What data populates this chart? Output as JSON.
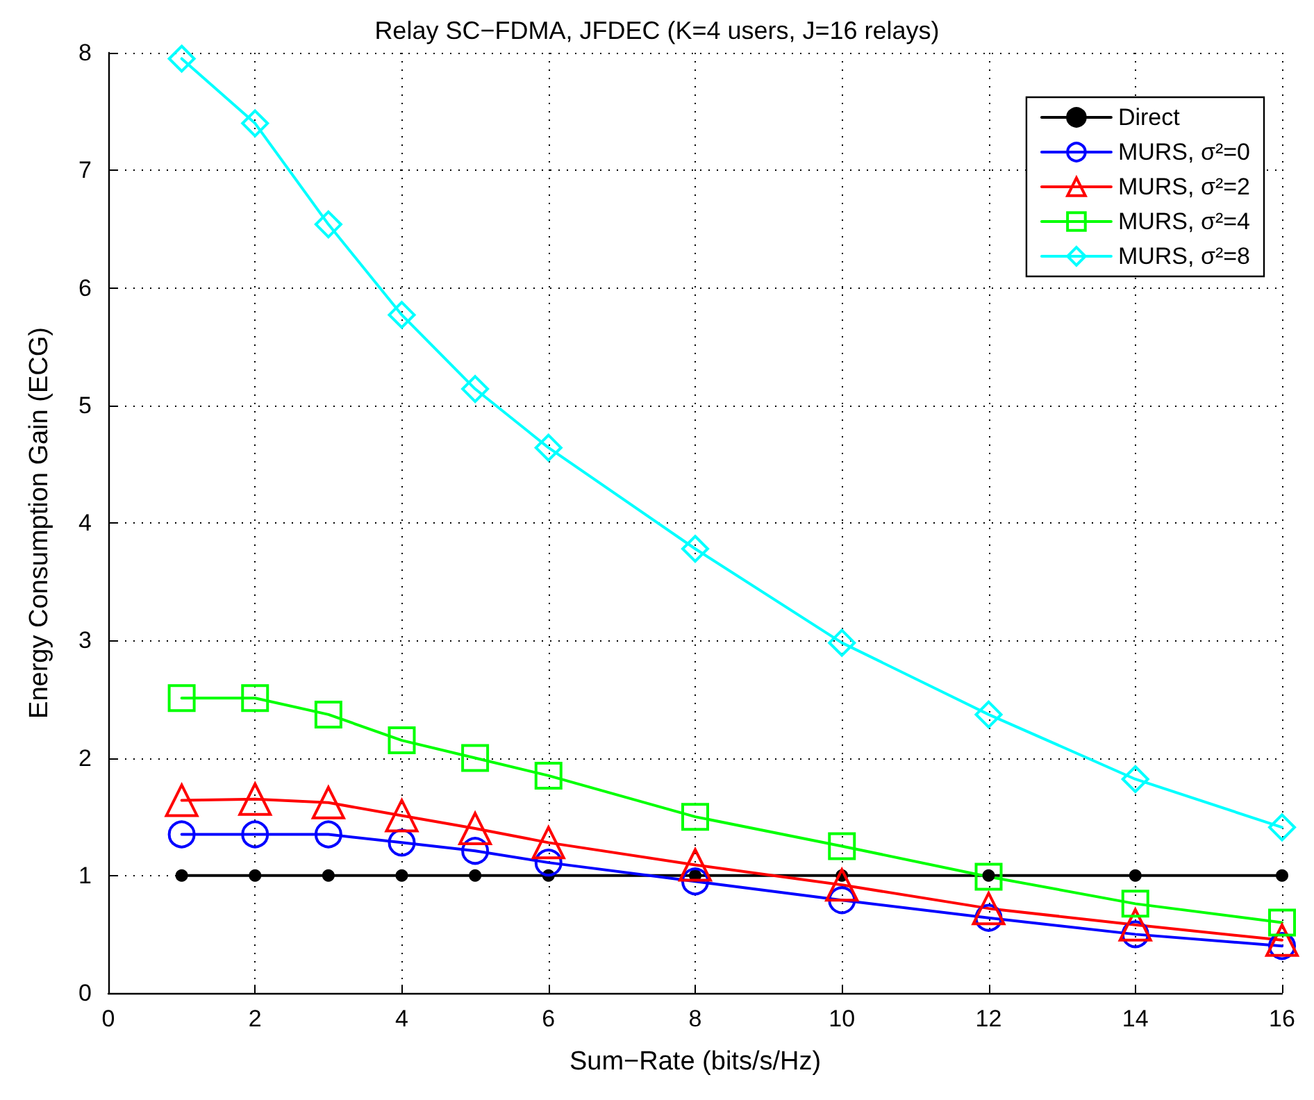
{
  "chart_data": {
    "type": "line",
    "title": "Relay SC−FDMA, JFDEC (K=4 users, J=16 relays)",
    "xlabel": "Sum−Rate (bits/s/Hz)",
    "ylabel": "Energy Consumption Gain (ECG)",
    "x": [
      1,
      2,
      3,
      4,
      5,
      6,
      8,
      10,
      12,
      14,
      16
    ],
    "xlim": [
      0,
      16
    ],
    "xticks": [
      0,
      2,
      4,
      6,
      8,
      10,
      12,
      14,
      16
    ],
    "ylim": [
      0,
      8
    ],
    "yticks": [
      0,
      1,
      2,
      3,
      4,
      5,
      6,
      7,
      8
    ],
    "grid": true,
    "legend": "top right",
    "line_style": "solid",
    "series": [
      {
        "name": "Direct",
        "color": "#000000",
        "marker": "circle",
        "values": [
          1,
          1,
          1,
          1,
          1,
          1,
          1,
          1,
          1,
          1,
          1
        ]
      },
      {
        "name": "MURS, σ²=0",
        "color": "#0000ff",
        "marker": "circle",
        "values": [
          1.35,
          1.35,
          1.35,
          1.28,
          1.21,
          1.11,
          0.95,
          0.79,
          0.64,
          0.5,
          0.4
        ]
      },
      {
        "name": "MURS, σ²=2",
        "color": "#ff0000",
        "marker": "triangle",
        "values": [
          1.64,
          1.65,
          1.62,
          1.51,
          1.4,
          1.28,
          1.09,
          0.92,
          0.72,
          0.58,
          0.45
        ]
      },
      {
        "name": "MURS, σ²=4",
        "color": "#00ff00",
        "marker": "square",
        "values": [
          2.51,
          2.51,
          2.37,
          2.15,
          2.0,
          1.85,
          1.5,
          1.25,
          0.99,
          0.76,
          0.6
        ]
      },
      {
        "name": "MURS, σ²=8",
        "color": "#00ffff",
        "marker": "diamond",
        "values": [
          7.95,
          7.4,
          6.54,
          5.77,
          5.14,
          4.64,
          3.78,
          2.98,
          2.37,
          1.82,
          1.41
        ]
      }
    ]
  }
}
